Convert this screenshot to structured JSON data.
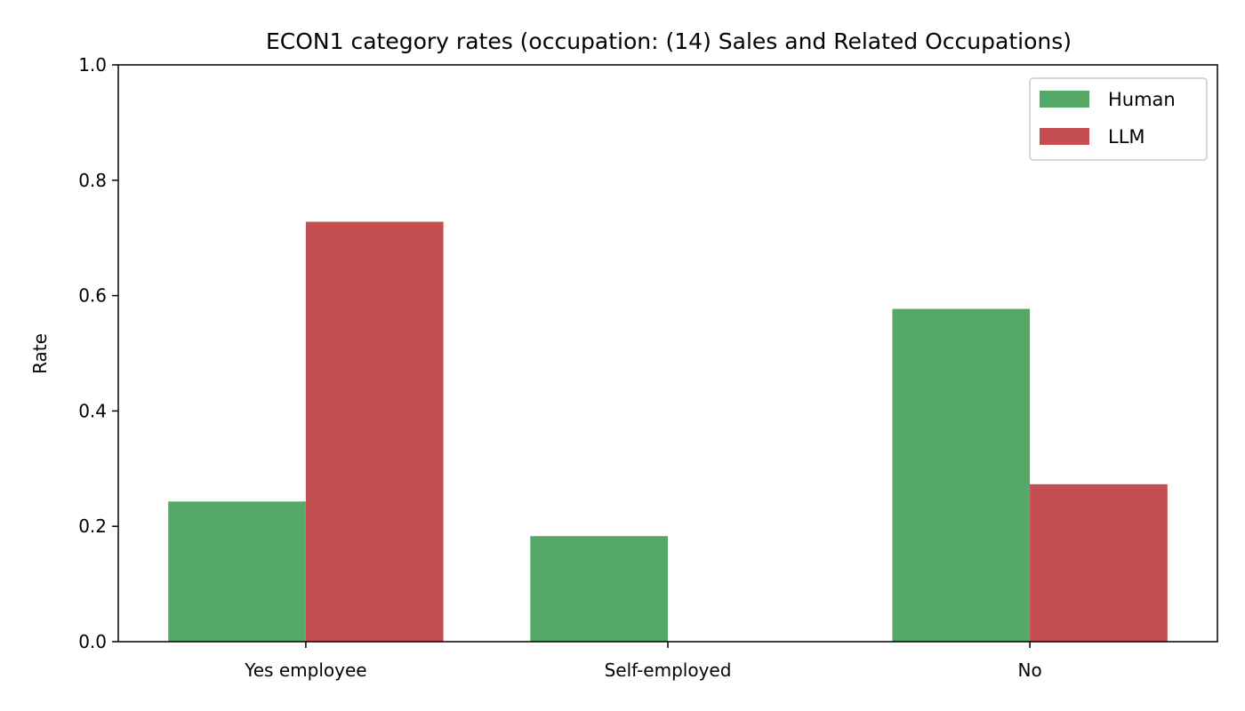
{
  "chart_data": {
    "type": "bar",
    "title": "ECON1 category rates (occupation: (14) Sales and Related Occupations)",
    "xlabel": "",
    "ylabel": "Rate",
    "categories": [
      "Yes employee",
      "Self-employed",
      "No"
    ],
    "series": [
      {
        "name": "Human",
        "color": "#55a868",
        "values": [
          0.243,
          0.183,
          0.577
        ]
      },
      {
        "name": "LLM",
        "color": "#c44e52",
        "values": [
          0.728,
          0.0,
          0.273
        ]
      }
    ],
    "ylim": [
      0,
      1.0
    ],
    "yticks": [
      "0.0",
      "0.2",
      "0.4",
      "0.6",
      "0.8",
      "1.0"
    ],
    "grid": false,
    "legend_position": "top-right"
  }
}
